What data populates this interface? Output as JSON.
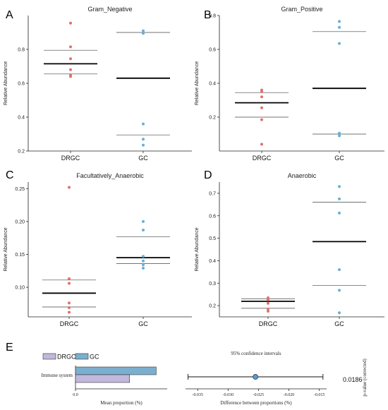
{
  "colors": {
    "drgc": "#e07070",
    "gc": "#6aaed6",
    "bar_drgc": "#c2b8dc",
    "bar_gc": "#7bafd0",
    "diamond": "#5b9bd5"
  },
  "chart_data": [
    {
      "panel": "A",
      "type": "scatter",
      "title": "Gram_Negative",
      "ylabel": "Relative Abundance",
      "categories": [
        "DRGC",
        "GC"
      ],
      "ylim": [
        0.2,
        1.0
      ],
      "yticks": [
        "0.2",
        "0.4",
        "0.6",
        "0.8"
      ],
      "ytick_values": [
        0.2,
        0.4,
        0.6,
        0.8
      ],
      "groups": [
        {
          "name": "DRGC",
          "points": [
            0.955,
            0.815,
            0.745,
            0.68,
            0.65,
            0.64
          ],
          "mean": 0.715,
          "sd_low": 0.655,
          "sd_high": 0.795
        },
        {
          "name": "GC",
          "points": [
            0.91,
            0.895,
            0.36,
            0.27,
            0.235
          ],
          "mean": 0.63,
          "sd_low": 0.295,
          "sd_high": 0.9
        }
      ]
    },
    {
      "panel": "B",
      "type": "scatter",
      "title": "Gram_Positive",
      "ylabel": "Relative Abundance",
      "categories": [
        "DRGC",
        "GC"
      ],
      "ylim": [
        0.0,
        0.8
      ],
      "yticks": [
        "0.2",
        "0.4",
        "0.6",
        "0.8"
      ],
      "ytick_values": [
        0.2,
        0.4,
        0.6,
        0.8
      ],
      "groups": [
        {
          "name": "DRGC",
          "points": [
            0.36,
            0.35,
            0.32,
            0.255,
            0.185,
            0.04
          ],
          "mean": 0.285,
          "sd_low": 0.2,
          "sd_high": 0.345
        },
        {
          "name": "GC",
          "points": [
            0.765,
            0.73,
            0.635,
            0.105,
            0.09
          ],
          "mean": 0.37,
          "sd_low": 0.1,
          "sd_high": 0.705
        }
      ]
    },
    {
      "panel": "C",
      "type": "scatter",
      "title": "Facultatively_Anaerobic",
      "ylabel": "Relative Abundance",
      "categories": [
        "DRGC",
        "GC"
      ],
      "ylim": [
        0.055,
        0.26
      ],
      "yticks": [
        "0.10",
        "0.15",
        "0.20",
        "0.25"
      ],
      "ytick_values": [
        0.1,
        0.15,
        0.2,
        0.25
      ],
      "groups": [
        {
          "name": "DRGC",
          "points": [
            0.252,
            0.113,
            0.106,
            0.076,
            0.069,
            0.062
          ],
          "mean": 0.091,
          "sd_low": 0.07,
          "sd_high": 0.111
        },
        {
          "name": "GC",
          "points": [
            0.2,
            0.187,
            0.147,
            0.14,
            0.134,
            0.129
          ],
          "mean": 0.145,
          "sd_low": 0.136,
          "sd_high": 0.177
        }
      ]
    },
    {
      "panel": "D",
      "type": "scatter",
      "title": "Anaerobic",
      "ylabel": "Relative Abundance",
      "categories": [
        "DRGC",
        "GC"
      ],
      "ylim": [
        0.15,
        0.75
      ],
      "yticks": [
        "0.2",
        "0.3",
        "0.4",
        "0.5",
        "0.6",
        "0.7"
      ],
      "ytick_values": [
        0.2,
        0.3,
        0.4,
        0.5,
        0.6,
        0.7
      ],
      "groups": [
        {
          "name": "DRGC",
          "points": [
            0.235,
            0.228,
            0.226,
            0.21,
            0.185,
            0.175
          ],
          "mean": 0.219,
          "sd_low": 0.188,
          "sd_high": 0.23
        },
        {
          "name": "GC",
          "points": [
            0.73,
            0.675,
            0.612,
            0.36,
            0.268,
            0.168
          ],
          "mean": 0.485,
          "sd_low": 0.29,
          "sd_high": 0.66
        }
      ]
    },
    {
      "panel": "E",
      "type": "bar",
      "legend": [
        "DRGC",
        "GC"
      ],
      "category": "Immune system",
      "mean_proportion": {
        "DRGC": 0.59,
        "GC": 0.88
      },
      "xlabel_left": "Mean proportion (%)",
      "xtick_left": "0.0",
      "ci_title": "95% confidence intervals",
      "difference": {
        "estimate": -0.0255,
        "ci": [
          -0.0366,
          -0.0144
        ]
      },
      "xlim_right": [
        -0.037,
        -0.0138
      ],
      "xticks_right": [
        "-0.035",
        "-0.030",
        "-0.025",
        "-0.020",
        "-0.015"
      ],
      "xtick_values_right": [
        -0.035,
        -0.03,
        -0.025,
        -0.02,
        -0.015
      ],
      "xlabel_right": "Difference between proportions (%)",
      "pvalue_label": "p-value (corrected)",
      "pvalue": "0.0186"
    }
  ]
}
